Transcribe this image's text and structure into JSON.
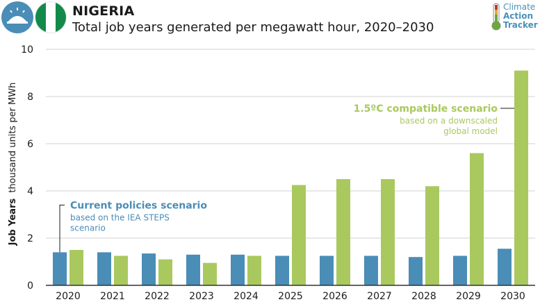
{
  "header": {
    "title": "NIGERIA",
    "subtitle": "Total job years generated per megawatt hour, 2020–2030"
  },
  "logo": {
    "line1": "Climate",
    "line2": "Action",
    "line3": "Tracker"
  },
  "colors": {
    "current": "#4a8db6",
    "compatible": "#a9c95f",
    "axis": "#333333",
    "grid": "#d0d0d0"
  },
  "chart_data": {
    "type": "bar",
    "categories": [
      "2020",
      "2021",
      "2022",
      "2023",
      "2024",
      "2025",
      "2026",
      "2027",
      "2028",
      "2029",
      "2030"
    ],
    "series": [
      {
        "name": "Current policies scenario",
        "values": [
          1.4,
          1.4,
          1.35,
          1.3,
          1.3,
          1.25,
          1.25,
          1.25,
          1.2,
          1.25,
          1.55
        ]
      },
      {
        "name": "1.5ºC compatible scenario",
        "values": [
          1.5,
          1.25,
          1.1,
          0.95,
          1.25,
          4.25,
          4.5,
          4.5,
          4.2,
          5.6,
          9.1
        ]
      }
    ],
    "ylabel_bold": "Job Years",
    "ylabel_rest": "thousand units per MWh",
    "ylim": [
      0,
      10
    ],
    "yticks": [
      0,
      2,
      4,
      6,
      8,
      10
    ],
    "grid": true,
    "annotations": {
      "current": {
        "title": "Current policies scenario",
        "line1": "based on the IEA STEPS",
        "line2": "scenario"
      },
      "compatible": {
        "title": "1.5ºC compatible scenario",
        "line1": "based on a downscaled",
        "line2": "global model"
      }
    }
  }
}
